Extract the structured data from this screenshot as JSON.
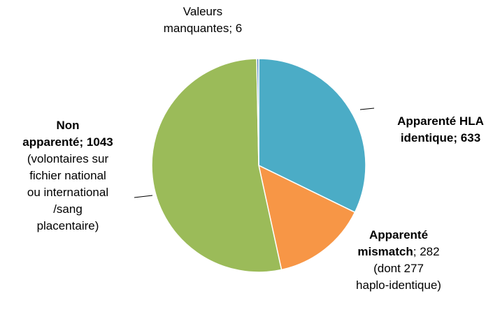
{
  "chart_data": {
    "type": "pie",
    "categories": [
      "Apparenté HLA identique",
      "Apparenté mismatch",
      "Non apparenté",
      "Valeurs manquantes"
    ],
    "values": [
      633,
      282,
      1043,
      6
    ],
    "colors": [
      "#4bacc6",
      "#f79646",
      "#9bbb59",
      "#4f81bd"
    ],
    "separator": "; ",
    "annotations": [
      [],
      [
        "(dont 277",
        "haplo-identique)"
      ],
      [
        "(volontaires sur",
        "fichier national",
        "ou international",
        "/sang",
        "placentaire)"
      ],
      []
    ]
  }
}
